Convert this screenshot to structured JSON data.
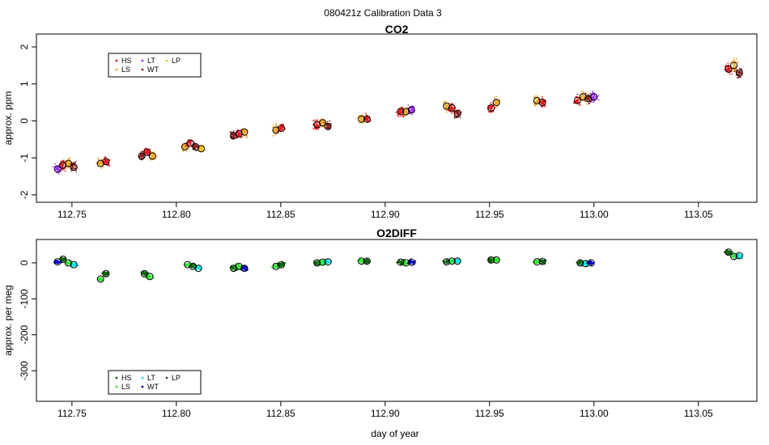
{
  "page_title": "080421z   Calibration Data 3",
  "xlabel": "day of year",
  "colors": {
    "co2": {
      "HS": "#e8141c",
      "LS": "#f5a623",
      "LT": "#9b30ff",
      "WT": "#8b1a1a",
      "LP": "#f7c400"
    },
    "o2": {
      "HS": "#006400",
      "LS": "#2ee82e",
      "LT": "#00e5ee",
      "WT": "#0000cd",
      "LP": "#2f4f2f"
    }
  },
  "chart_data": [
    {
      "id": "co2",
      "type": "scatter",
      "title": "CO2",
      "ylabel": "approx. ppm",
      "xlim": [
        112.733,
        113.078
      ],
      "ylim": [
        -2.2,
        2.35
      ],
      "x_ticks": [
        "112.75",
        "112.80",
        "112.85",
        "112.90",
        "112.95",
        "113.00",
        "113.05"
      ],
      "y_ticks": [
        "-2",
        "-1",
        "0",
        "1",
        "2"
      ],
      "legend": {
        "position": "top-left",
        "entries": [
          "HS",
          "LT",
          "LP",
          "LS",
          "WT"
        ]
      },
      "clusters": [
        {
          "x": 112.747,
          "spread": 0.12,
          "series": [
            [
              "LT",
              -1.3
            ],
            [
              "HS",
              -1.2
            ],
            [
              "LS",
              -1.15
            ],
            [
              "WT",
              -1.25
            ]
          ]
        },
        {
          "x": 112.765,
          "spread": 0.11,
          "series": [
            [
              "LS",
              -1.15
            ],
            [
              "HS",
              -1.1
            ]
          ]
        },
        {
          "x": 112.786,
          "spread": 0.11,
          "series": [
            [
              "WT",
              -0.95
            ],
            [
              "HS",
              -0.85
            ],
            [
              "LS",
              -0.95
            ]
          ]
        },
        {
          "x": 112.808,
          "spread": 0.11,
          "series": [
            [
              "LS",
              -0.7
            ],
            [
              "HS",
              -0.6
            ],
            [
              "WT",
              -0.7
            ],
            [
              "LP",
              -0.75
            ]
          ]
        },
        {
          "x": 112.83,
          "spread": 0.12,
          "series": [
            [
              "WT",
              -0.4
            ],
            [
              "HS",
              -0.35
            ],
            [
              "LS",
              -0.3
            ]
          ]
        },
        {
          "x": 112.849,
          "spread": 0.12,
          "series": [
            [
              "LS",
              -0.25
            ],
            [
              "HS",
              -0.2
            ]
          ]
        },
        {
          "x": 112.87,
          "spread": 0.12,
          "series": [
            [
              "HS",
              -0.1
            ],
            [
              "LS",
              -0.05
            ],
            [
              "WT",
              -0.15
            ]
          ]
        },
        {
          "x": 112.89,
          "spread": 0.11,
          "series": [
            [
              "LS",
              0.05
            ],
            [
              "HS",
              0.05
            ]
          ]
        },
        {
          "x": 112.91,
          "spread": 0.13,
          "series": [
            [
              "HS",
              0.25
            ],
            [
              "LS",
              0.25
            ],
            [
              "LT",
              0.3
            ]
          ]
        },
        {
          "x": 112.932,
          "spread": 0.13,
          "series": [
            [
              "LS",
              0.4
            ],
            [
              "HS",
              0.35
            ],
            [
              "WT",
              0.2
            ]
          ]
        },
        {
          "x": 112.952,
          "spread": 0.13,
          "series": [
            [
              "HS",
              0.35
            ],
            [
              "LS",
              0.5
            ]
          ]
        },
        {
          "x": 112.974,
          "spread": 0.13,
          "series": [
            [
              "LS",
              0.55
            ],
            [
              "HS",
              0.5
            ]
          ]
        },
        {
          "x": 112.996,
          "spread": 0.13,
          "series": [
            [
              "HS",
              0.55
            ],
            [
              "LS",
              0.65
            ],
            [
              "WT",
              0.6
            ],
            [
              "LT",
              0.65
            ]
          ]
        },
        {
          "x": 113.067,
          "spread": 0.14,
          "series": [
            [
              "HS",
              1.4
            ],
            [
              "LS",
              1.5
            ],
            [
              "WT",
              1.3
            ]
          ]
        }
      ]
    },
    {
      "id": "o2",
      "type": "scatter",
      "title": "O2DIFF",
      "ylabel": "approx. per meg",
      "xlim": [
        112.733,
        113.078
      ],
      "ylim": [
        -385,
        65
      ],
      "x_ticks": [
        "112.75",
        "112.80",
        "112.85",
        "112.90",
        "112.95",
        "113.00",
        "113.05"
      ],
      "y_ticks": [
        "-300",
        "-200",
        "-100",
        "0"
      ],
      "legend": {
        "position": "bottom-left",
        "entries": [
          "HS",
          "LT",
          "LP",
          "LS",
          "WT"
        ]
      },
      "clusters": [
        {
          "x": 112.747,
          "spread": 6,
          "series": [
            [
              "WT",
              3
            ],
            [
              "HS",
              10
            ],
            [
              "LS",
              0
            ],
            [
              "LT",
              -5
            ]
          ]
        },
        {
          "x": 112.765,
          "spread": 6,
          "series": [
            [
              "LS",
              -45
            ],
            [
              "HS",
              -30
            ]
          ]
        },
        {
          "x": 112.786,
          "spread": 6,
          "series": [
            [
              "HS",
              -30
            ],
            [
              "LS",
              -38
            ]
          ]
        },
        {
          "x": 112.808,
          "spread": 6,
          "series": [
            [
              "LS",
              -5
            ],
            [
              "HS",
              -10
            ],
            [
              "LT",
              -15
            ]
          ]
        },
        {
          "x": 112.83,
          "spread": 7,
          "series": [
            [
              "HS",
              -15
            ],
            [
              "LS",
              -10
            ],
            [
              "WT",
              -15
            ]
          ]
        },
        {
          "x": 112.849,
          "spread": 6,
          "series": [
            [
              "LS",
              -10
            ],
            [
              "HS",
              -5
            ]
          ]
        },
        {
          "x": 112.87,
          "spread": 6,
          "series": [
            [
              "HS",
              0
            ],
            [
              "LS",
              2
            ],
            [
              "LT",
              3
            ]
          ]
        },
        {
          "x": 112.89,
          "spread": 6,
          "series": [
            [
              "LS",
              5
            ],
            [
              "HS",
              5
            ]
          ]
        },
        {
          "x": 112.91,
          "spread": 6,
          "series": [
            [
              "HS",
              2
            ],
            [
              "LS",
              0
            ],
            [
              "WT",
              2
            ]
          ]
        },
        {
          "x": 112.932,
          "spread": 6,
          "series": [
            [
              "HS",
              3
            ],
            [
              "LS",
              5
            ],
            [
              "LT",
              5
            ]
          ]
        },
        {
          "x": 112.952,
          "spread": 6,
          "series": [
            [
              "HS",
              8
            ],
            [
              "LS",
              8
            ]
          ]
        },
        {
          "x": 112.974,
          "spread": 6,
          "series": [
            [
              "LS",
              3
            ],
            [
              "HS",
              4
            ]
          ]
        },
        {
          "x": 112.996,
          "spread": 6,
          "series": [
            [
              "HS",
              0
            ],
            [
              "LT",
              -2
            ],
            [
              "WT",
              0
            ]
          ]
        },
        {
          "x": 113.067,
          "spread": 7,
          "series": [
            [
              "HS",
              30
            ],
            [
              "LS",
              18
            ],
            [
              "LT",
              20
            ]
          ]
        }
      ]
    }
  ]
}
